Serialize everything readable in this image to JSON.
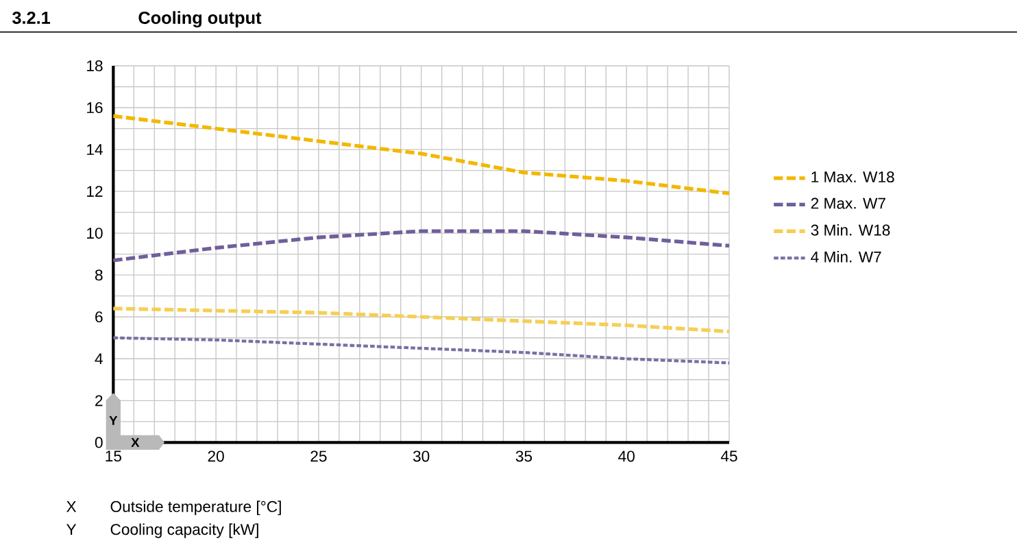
{
  "chart_data": {
    "type": "line",
    "title": "3.2.1",
    "subtitle": "Cooling output",
    "xlabel": "X",
    "ylabel": "Y",
    "annotations": [
      "X",
      "Outside temperature [°C]",
      "Y",
      "Cooling capacity [kW]"
    ],
    "x": [
      15,
      20,
      25,
      30,
      35,
      40,
      45
    ],
    "series": [
      {
        "name": "1 Max. W18",
        "color": "#f2b800",
        "line_style": "dashed",
        "values": [
          15.6,
          15.0,
          14.4,
          13.8,
          12.9,
          12.5,
          11.9
        ]
      },
      {
        "name": "2 Max. W7",
        "color": "#6f5f9a",
        "line_style": "dashed",
        "values": [
          8.7,
          9.3,
          9.8,
          10.1,
          10.1,
          9.8,
          9.4
        ]
      },
      {
        "name": "3 Min. W18",
        "color": "#f5cf55",
        "line_style": "dashed",
        "values": [
          6.4,
          6.3,
          6.2,
          6.0,
          5.8,
          5.6,
          5.3
        ]
      },
      {
        "name": "4 Min. W7",
        "color": "#7a6ea3",
        "line_style": "dotted",
        "values": [
          5.0,
          4.9,
          4.7,
          4.5,
          4.3,
          4.0,
          3.8
        ]
      }
    ],
    "xlim": [
      15,
      45
    ],
    "ylim": [
      0,
      18
    ],
    "xticks": [
      15,
      20,
      25,
      30,
      35,
      40,
      45
    ],
    "yticks": [
      0,
      2,
      4,
      6,
      8,
      10,
      12,
      14,
      16,
      18
    ],
    "grid": true,
    "legend": "right",
    "marker": "none"
  }
}
